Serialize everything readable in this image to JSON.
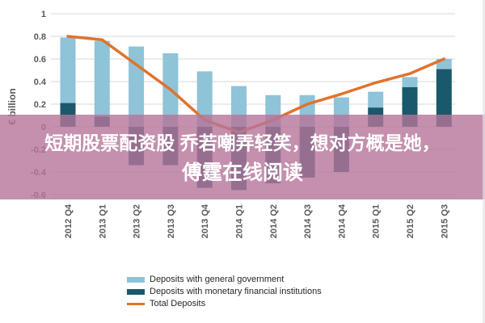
{
  "overlay": {
    "line1": "短期股票配资股 乔若嘲弄轻笑，想对方概是她，",
    "line2": "傅霆在线阅读",
    "bg_color": "rgba(181,116,154,0.8)",
    "text_color": "#ffffff"
  },
  "chart_data": {
    "type": "bar",
    "title": "",
    "xlabel": "",
    "ylabel": "€ billion",
    "ylim": [
      -0.6,
      1.0
    ],
    "ytick_step": 0.2,
    "grid": true,
    "legend_position": "bottom",
    "categories": [
      "2012 Q4",
      "2013 Q1",
      "2013 Q2",
      "2013 Q3",
      "2013 Q4",
      "2014 Q1",
      "2014 Q2",
      "2014 Q3",
      "2014 Q4",
      "2015 Q1",
      "2015 Q2",
      "2015 Q3"
    ],
    "series": [
      {
        "name": "Deposits with general government",
        "type": "bar",
        "color": "#8fc3d7",
        "values": [
          0.58,
          0.67,
          0.71,
          0.65,
          0.49,
          0.36,
          0.28,
          0.28,
          0.26,
          0.14,
          0.09,
          0.09
        ]
      },
      {
        "name": "Deposits with monetary financial institutions",
        "type": "bar",
        "color": "#19596b",
        "values": [
          0.21,
          0.09,
          -0.34,
          -0.34,
          -0.54,
          -0.56,
          -0.5,
          -0.45,
          -0.4,
          0.17,
          0.35,
          0.51
        ]
      },
      {
        "name": "Total Deposits",
        "type": "line",
        "color": "#e0732d",
        "values": [
          0.8,
          0.77,
          0.55,
          0.33,
          0.06,
          -0.05,
          0.06,
          0.2,
          0.29,
          0.39,
          0.47,
          0.6
        ]
      }
    ]
  },
  "colors": {
    "gridline": "#d9d9d9",
    "axis_text": "#595959",
    "legend_text": "#262626",
    "background": "#ffffff"
  }
}
